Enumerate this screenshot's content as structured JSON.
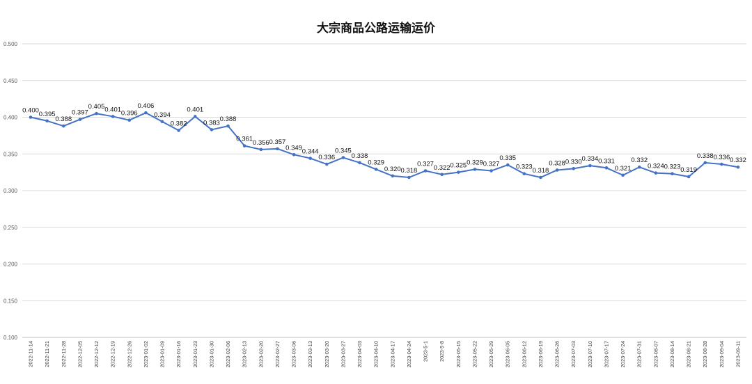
{
  "chart_data": {
    "type": "line",
    "title": "大宗商品公路运输运价",
    "xlabel": "",
    "ylabel": "",
    "ylim": [
      0.1,
      0.5
    ],
    "y_ticks": [
      "0.100",
      "0.150",
      "0.200",
      "0.250",
      "0.300",
      "0.350",
      "0.400",
      "0.450",
      "0.500"
    ],
    "grid": true,
    "legend": "none",
    "line_color": "#4472C4",
    "grid_color": "#D9D9D9",
    "categories": [
      "2022-11-14",
      "2022-11-21",
      "2022-11-28",
      "2022-12-05",
      "2022-12-12",
      "2022-12-19",
      "2022-12-26",
      "2023-01-02",
      "2023-01-09",
      "2023-01-16",
      "2023-01-23",
      "2023-01-30",
      "2023-02-06",
      "2023-02-13",
      "2023-02-20",
      "2023-02-27",
      "2023-03-06",
      "2023-03-13",
      "2023-03-20",
      "2023-03-27",
      "2023-04-03",
      "2023-04-10",
      "2023-04-17",
      "2023-04-24",
      "2023-5-1",
      "2023-5-8",
      "2023-05-15",
      "2023-05-22",
      "2023-05-29",
      "2023-06-05",
      "2023-06-12",
      "2023-06-19",
      "2023-06-26",
      "2023-07-03",
      "2023-07-10",
      "2023-07-17",
      "2023-07-24",
      "2023-07-31",
      "2023-08-07",
      "2023-08-14",
      "2023-08-21",
      "2023-08-28",
      "2023-09-04",
      "2023-09-11"
    ],
    "series": [
      {
        "values": [
          0.4,
          0.395,
          0.388,
          0.397,
          0.405,
          0.401,
          0.396,
          0.406,
          0.394,
          0.382,
          0.401,
          0.383,
          0.388,
          0.361,
          0.356,
          0.357,
          0.349,
          0.344,
          0.336,
          0.345,
          0.338,
          0.329,
          0.32,
          0.318,
          0.327,
          0.322,
          0.325,
          0.329,
          0.327,
          0.335,
          0.323,
          0.318,
          0.328,
          0.33,
          0.334,
          0.331,
          0.321,
          0.332,
          0.324,
          0.323,
          0.319,
          0.338,
          0.336,
          0.332
        ],
        "labels": [
          "0.400",
          "0.395",
          "0.388",
          "0.397",
          "0.405",
          "0.401",
          "0.396",
          "0.406",
          "0.394",
          "0.382",
          "0.401",
          "0.383",
          "0.388",
          "0.361",
          "0.356",
          "0.357",
          "0.349",
          "0.344",
          "0.336",
          "0.345",
          "0.338",
          "0.329",
          "0.320",
          "0.318",
          "0.327",
          "0.322",
          "0.325",
          "0.329",
          "0.327",
          "0.335",
          "0.323",
          "0.318",
          "0.328",
          "0.330",
          "0.334",
          "0.331",
          "0.321",
          "0.332",
          "0.324",
          "0.323",
          "0.319",
          "0.338",
          "0.336",
          "0.332"
        ]
      }
    ]
  }
}
